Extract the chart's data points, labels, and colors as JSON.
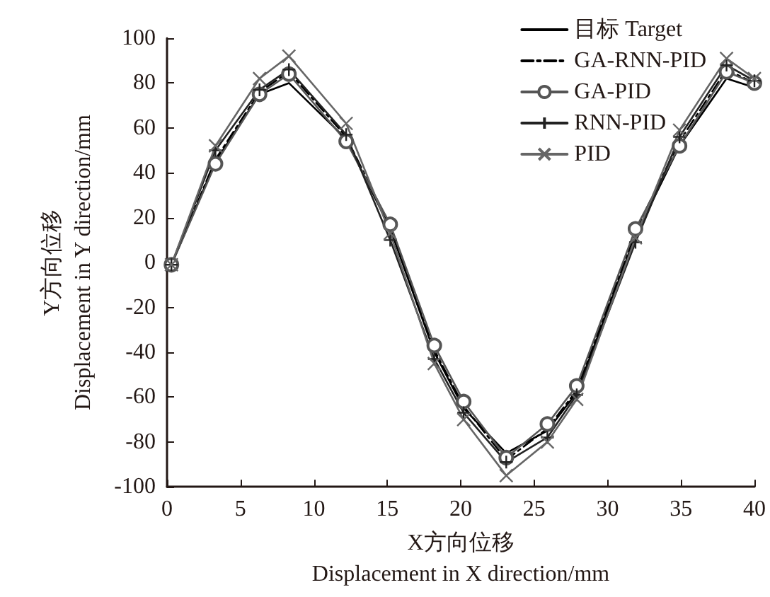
{
  "chart_data": {
    "type": "line",
    "xlabel": "X方向位移\nDisplacement in X direction/mm",
    "ylabel": "Y方向位移\nDisplacement in Y direction/mm",
    "xlim": [
      0,
      40
    ],
    "xticks": [
      0,
      5,
      10,
      15,
      20,
      25,
      30,
      35,
      40
    ],
    "ylim": [
      -100,
      100
    ],
    "yticks": [
      -100,
      -80,
      -60,
      -40,
      -20,
      0,
      20,
      40,
      60,
      80,
      100
    ],
    "grid": false,
    "legend": "top right",
    "x": [
      0.3,
      3.3,
      6.3,
      8.3,
      12.2,
      15.2,
      18.2,
      20.2,
      23.1,
      25.9,
      27.9,
      31.9,
      34.9,
      38.1,
      40
    ],
    "series": [
      {
        "name": "目标 Target",
        "color": "#000000",
        "line_style": "solid",
        "marker": "none",
        "values": [
          -1,
          45,
          75,
          80,
          55,
          15,
          -40,
          -65,
          -85,
          -75,
          -58,
          12,
          52,
          82,
          78
        ]
      },
      {
        "name": "GA-RNN-PID",
        "color": "#000000",
        "line_style": "dashdot",
        "marker": "none",
        "values": [
          -1,
          46,
          76,
          85,
          56,
          16,
          -39,
          -64,
          -88,
          -74,
          -57,
          14,
          54,
          86,
          80
        ]
      },
      {
        "name": "GA-PID",
        "color": "#555555",
        "line_style": "solid",
        "marker": "circle",
        "values": [
          -1,
          44,
          75,
          84,
          54,
          17,
          -37,
          -62,
          -87,
          -72,
          -55,
          15,
          52,
          85,
          80
        ]
      },
      {
        "name": "RNN-PID",
        "color": "#222222",
        "line_style": "solid",
        "marker": "cross",
        "values": [
          -1,
          50,
          77,
          86,
          57,
          10,
          -43,
          -67,
          -89,
          -78,
          -59,
          9,
          56,
          88,
          81
        ]
      },
      {
        "name": "PID",
        "color": "#666666",
        "line_style": "solid",
        "marker": "x",
        "values": [
          -1,
          52,
          82,
          92,
          62,
          13,
          -45,
          -70,
          -95,
          -80,
          -61,
          11,
          59,
          91,
          82
        ]
      }
    ]
  }
}
